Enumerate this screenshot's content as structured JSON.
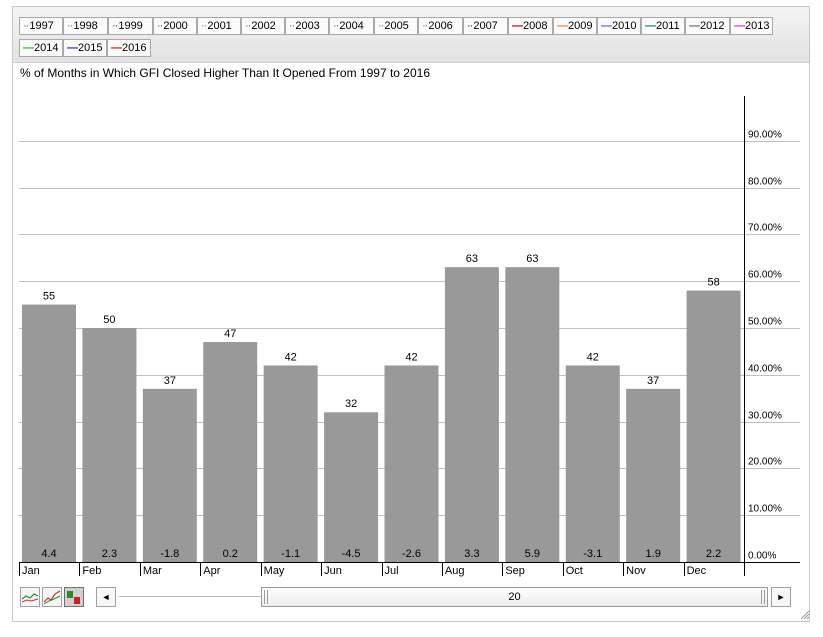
{
  "legend": {
    "items": [
      {
        "label": "1997",
        "color": "#cc33cc"
      },
      {
        "label": "1998",
        "color": "#33aa33"
      },
      {
        "label": "1999",
        "color": "#3333aa"
      },
      {
        "label": "2000",
        "color": "#aa2244"
      },
      {
        "label": "2001",
        "color": "#dd7733"
      },
      {
        "label": "2002",
        "color": "#6633cc"
      },
      {
        "label": "2003",
        "color": "#228888"
      },
      {
        "label": "2004",
        "color": "#555555"
      },
      {
        "label": "2005",
        "color": "#cc33cc"
      },
      {
        "label": "2006",
        "color": "#33aa33"
      },
      {
        "label": "2007",
        "color": "#222277"
      },
      {
        "label": "2008",
        "color": "#aa0000"
      },
      {
        "label": "2009",
        "color": "#ee7722"
      },
      {
        "label": "2010",
        "color": "#8844cc"
      },
      {
        "label": "2011",
        "color": "#117777"
      },
      {
        "label": "2012",
        "color": "#666666"
      },
      {
        "label": "2013",
        "color": "#cc33cc"
      },
      {
        "label": "2014",
        "color": "#22aa22"
      },
      {
        "label": "2015",
        "color": "#2222aa"
      },
      {
        "label": "2016",
        "color": "#cc0000"
      }
    ]
  },
  "chart_data": {
    "type": "bar",
    "title": "% of Months in Which GFI Closed Higher Than It Opened From 1997 to 2016",
    "categories": [
      "Jan",
      "Feb",
      "Mar",
      "Apr",
      "May",
      "Jun",
      "Jul",
      "Aug",
      "Sep",
      "Oct",
      "Nov",
      "Dec"
    ],
    "values": [
      55,
      50,
      37,
      47,
      42,
      32,
      42,
      63,
      63,
      42,
      37,
      58
    ],
    "bar_labels": [
      "55",
      "50",
      "37",
      "47",
      "42",
      "32",
      "42",
      "63",
      "63",
      "42",
      "37",
      "58"
    ],
    "bottom_labels": [
      "4.4",
      "2.3",
      "-1.8",
      "0.2",
      "-1.1",
      "-4.5",
      "-2.6",
      "3.3",
      "5.9",
      "-3.1",
      "1.9",
      "2.2"
    ],
    "y_ticks": [
      0,
      10,
      20,
      30,
      40,
      50,
      60,
      70,
      80,
      90
    ],
    "y_tick_labels": [
      "0.00%",
      "10.00%",
      "20.00%",
      "30.00%",
      "40.00%",
      "50.00%",
      "60.00%",
      "70.00%",
      "80.00%",
      "90.00%"
    ],
    "ylim": [
      0,
      100
    ],
    "y_axis_side": "right",
    "grid": true,
    "bar_color": "#999999",
    "grid_color": "#c0c0c0"
  },
  "controls": {
    "range_value": "20",
    "scroll_left_glyph": "◄",
    "scroll_right_glyph": "►"
  }
}
